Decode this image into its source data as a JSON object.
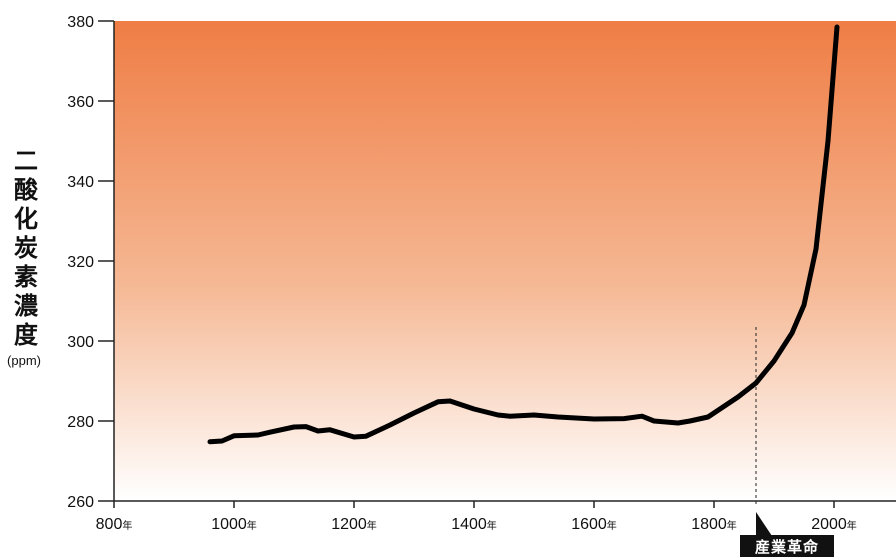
{
  "chart_data": {
    "type": "line",
    "ylabel": "二酸化炭素濃度",
    "yunit": "(ppm)",
    "ylim": [
      260,
      380
    ],
    "yticks": [
      260,
      280,
      300,
      320,
      340,
      360,
      380
    ],
    "xlim": [
      800,
      2100
    ],
    "xticks": [
      800,
      1000,
      1200,
      1400,
      1600,
      1800,
      2000
    ],
    "xtick_suffix": "年",
    "background_gradient": {
      "top": "#ef7d45",
      "bottom": "#ffffff"
    },
    "line_color": "#000000",
    "series": [
      {
        "x": [
          960,
          980,
          1000,
          1040,
          1060,
          1100,
          1120,
          1140,
          1160,
          1200,
          1220,
          1260,
          1300,
          1340,
          1360,
          1400,
          1440,
          1460,
          1500,
          1540,
          1600,
          1650,
          1680,
          1700,
          1740,
          1760,
          1790,
          1810,
          1840,
          1870,
          1900,
          1930,
          1950,
          1970,
          1990,
          2005
        ],
        "y": [
          274.8,
          275.0,
          276.3,
          276.5,
          277.2,
          278.5,
          278.6,
          277.5,
          277.8,
          276.0,
          276.2,
          279.0,
          282.0,
          284.8,
          285.0,
          283.0,
          281.5,
          281.2,
          281.5,
          281.0,
          280.5,
          280.6,
          281.2,
          280.0,
          279.5,
          280.0,
          281.0,
          283.0,
          286.0,
          289.5,
          295.0,
          302.0,
          309.0,
          323.0,
          350.0,
          378.5
        ]
      }
    ],
    "annotation": {
      "x": 1870,
      "label": "産業革命",
      "style": "dashed-vertical"
    }
  }
}
